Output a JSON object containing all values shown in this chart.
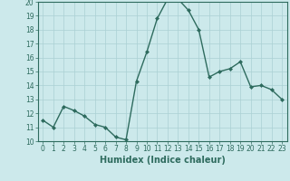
{
  "x": [
    0,
    1,
    2,
    3,
    4,
    5,
    6,
    7,
    8,
    9,
    10,
    11,
    12,
    13,
    14,
    15,
    16,
    17,
    18,
    19,
    20,
    21,
    22,
    23
  ],
  "y": [
    11.5,
    11.0,
    12.5,
    12.2,
    11.8,
    11.2,
    11.0,
    10.3,
    10.1,
    14.3,
    16.4,
    18.8,
    20.2,
    20.2,
    19.4,
    18.0,
    14.6,
    15.0,
    15.2,
    15.7,
    13.9,
    14.0,
    13.7,
    13.0
  ],
  "line_color": "#2e6b5e",
  "marker": "D",
  "marker_size": 2.0,
  "bg_color": "#cce9eb",
  "grid_color": "#aad0d4",
  "xlabel": "Humidex (Indice chaleur)",
  "ylim": [
    10,
    20
  ],
  "xlim": [
    -0.5,
    23.5
  ],
  "yticks": [
    10,
    11,
    12,
    13,
    14,
    15,
    16,
    17,
    18,
    19,
    20
  ],
  "xticks": [
    0,
    1,
    2,
    3,
    4,
    5,
    6,
    7,
    8,
    9,
    10,
    11,
    12,
    13,
    14,
    15,
    16,
    17,
    18,
    19,
    20,
    21,
    22,
    23
  ],
  "tick_fontsize": 5.5,
  "label_fontsize": 7,
  "axis_color": "#2e6b5e",
  "linewidth": 1.0
}
